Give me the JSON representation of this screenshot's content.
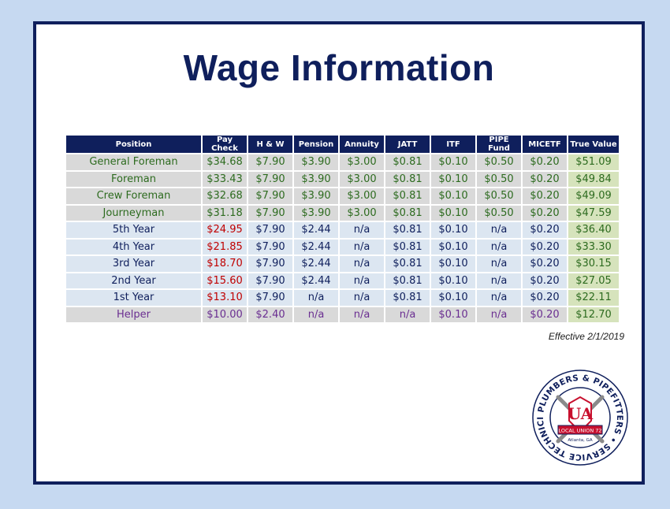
{
  "title": "Wage Information",
  "effective": "Effective 2/1/2019",
  "headers": [
    "Position",
    "Pay Check",
    "H & W",
    "Pension",
    "Annuity",
    "JATT",
    "ITF",
    "PIPE Fund",
    "MICETF",
    "True Value"
  ],
  "rows": [
    [
      "General Foreman",
      "$34.68",
      "$7.90",
      "$3.90",
      "$3.00",
      "$0.81",
      "$0.10",
      "$0.50",
      "$0.20",
      "$51.09"
    ],
    [
      "Foreman",
      "$33.43",
      "$7.90",
      "$3.90",
      "$3.00",
      "$0.81",
      "$0.10",
      "$0.50",
      "$0.20",
      "$49.84"
    ],
    [
      "Crew Foreman",
      "$32.68",
      "$7.90",
      "$3.90",
      "$3.00",
      "$0.81",
      "$0.10",
      "$0.50",
      "$0.20",
      "$49.09"
    ],
    [
      "Journeyman",
      "$31.18",
      "$7.90",
      "$3.90",
      "$3.00",
      "$0.81",
      "$0.10",
      "$0.50",
      "$0.20",
      "$47.59"
    ],
    [
      "5th Year",
      "$24.95",
      "$7.90",
      "$2.44",
      "n/a",
      "$0.81",
      "$0.10",
      "n/a",
      "$0.20",
      "$36.40"
    ],
    [
      "4th Year",
      "$21.85",
      "$7.90",
      "$2.44",
      "n/a",
      "$0.81",
      "$0.10",
      "n/a",
      "$0.20",
      "$33.30"
    ],
    [
      "3rd Year",
      "$18.70",
      "$7.90",
      "$2.44",
      "n/a",
      "$0.81",
      "$0.10",
      "n/a",
      "$0.20",
      "$30.15"
    ],
    [
      "2nd Year",
      "$15.60",
      "$7.90",
      "$2.44",
      "n/a",
      "$0.81",
      "$0.10",
      "n/a",
      "$0.20",
      "$27.05"
    ],
    [
      "1st Year",
      "$13.10",
      "$7.90",
      "n/a",
      "n/a",
      "$0.81",
      "$0.10",
      "n/a",
      "$0.20",
      "$22.11"
    ],
    [
      "Helper",
      "$10.00",
      "$2.40",
      "n/a",
      "n/a",
      "n/a",
      "$0.10",
      "n/a",
      "$0.20",
      "$12.70"
    ]
  ],
  "logo": {
    "ring_text": "PLUMBERS & PIPEFITTERS • SERVICE TECHNICIANS",
    "monogram": "UA",
    "banner": "LOCAL UNION 72",
    "city": "Atlanta, GA"
  },
  "colors": {
    "navy": "#0f1f5c",
    "green_text": "#2d6b1f",
    "red_text": "#c00000",
    "purple_text": "#6a2e91",
    "grey_row": "#d9d9d9",
    "blue_row": "#dce6f1",
    "true_value_bg": "#d6e3bc"
  }
}
